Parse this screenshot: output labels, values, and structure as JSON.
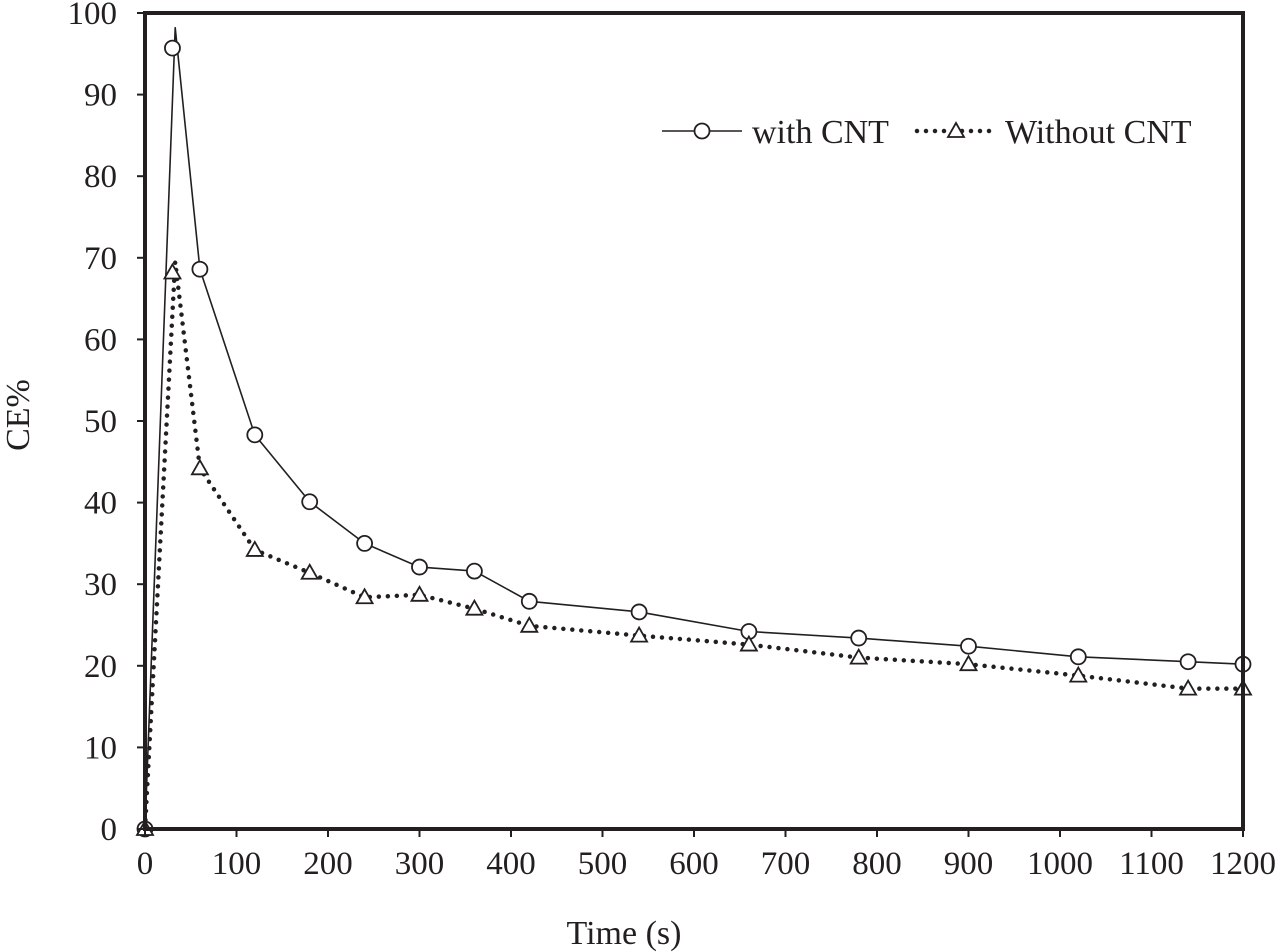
{
  "chart_data": {
    "type": "line",
    "title": "",
    "xlabel": "Time (s)",
    "ylabel": "CE%",
    "xlim": [
      0,
      1200
    ],
    "ylim": [
      0,
      100
    ],
    "xticks": [
      0,
      100,
      200,
      300,
      400,
      500,
      600,
      700,
      800,
      900,
      1000,
      1100,
      1200
    ],
    "yticks": [
      0,
      10,
      20,
      30,
      40,
      50,
      60,
      70,
      80,
      90,
      100
    ],
    "grid": false,
    "legend_position": "top-right",
    "series": [
      {
        "name": "with CNT",
        "line_style": "solid",
        "marker": "circle",
        "peak_x": 33,
        "peak_y": 98.2,
        "x": [
          0,
          30,
          60,
          120,
          180,
          240,
          300,
          360,
          420,
          540,
          660,
          780,
          900,
          1020,
          1140,
          1200
        ],
        "values": [
          0,
          95.7,
          68.6,
          48.3,
          40.1,
          35.0,
          32.1,
          31.6,
          27.9,
          26.6,
          24.2,
          23.4,
          22.4,
          21.1,
          20.5,
          20.2
        ]
      },
      {
        "name": "Without CNT",
        "line_style": "dotted",
        "marker": "triangle",
        "peak_x": 33,
        "peak_y": 69.5,
        "x": [
          0,
          30,
          60,
          120,
          180,
          240,
          300,
          360,
          420,
          540,
          660,
          780,
          900,
          1020,
          1140,
          1200
        ],
        "values": [
          0,
          68.2,
          44.2,
          34.2,
          31.4,
          28.4,
          28.7,
          27.0,
          24.9,
          23.7,
          22.6,
          21.0,
          20.2,
          18.8,
          17.2,
          17.2
        ]
      }
    ]
  }
}
